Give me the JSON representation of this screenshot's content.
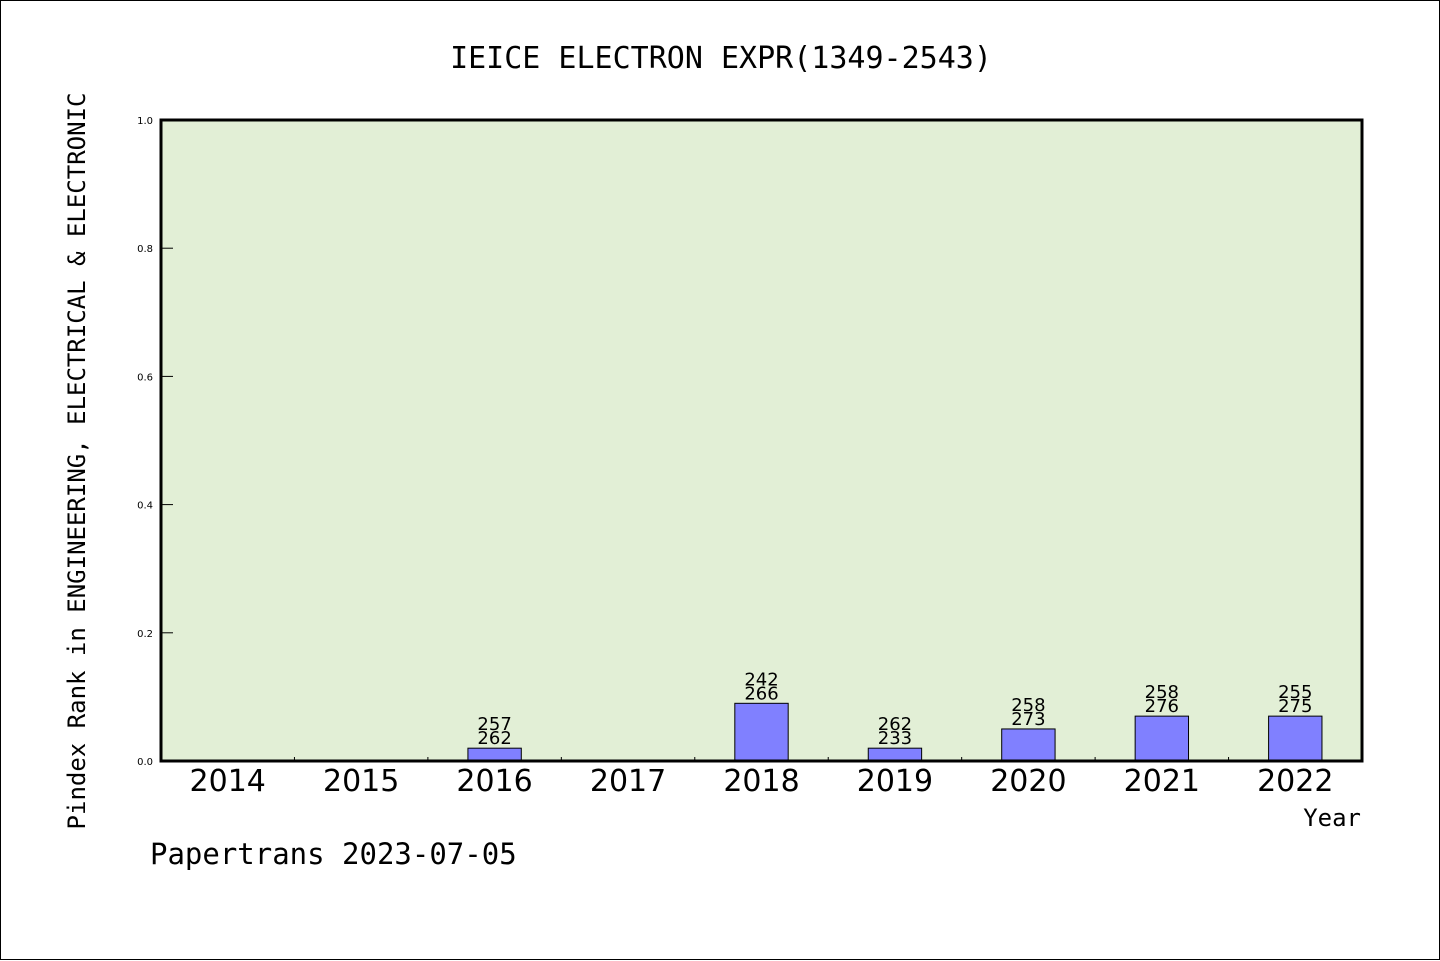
{
  "chart_data": {
    "type": "bar",
    "title": "IEICE ELECTRON EXPR(1349-2543)",
    "ylabel": "Pindex Rank in ENGINEERING, ELECTRICAL & ELECTRONIC",
    "xlabel": "Year",
    "ylim": [
      0,
      1.0
    ],
    "yticks": [
      "0.0",
      "0.2",
      "0.4",
      "0.6",
      "0.8",
      "1.0"
    ],
    "categories": [
      "2014",
      "2015",
      "2016",
      "2017",
      "2018",
      "2019",
      "2020",
      "2021",
      "2022"
    ],
    "values": [
      0,
      0,
      0.02,
      0,
      0.09,
      0.02,
      0.05,
      0.07,
      0.07
    ],
    "bar_labels": [
      {
        "top": "",
        "bottom": ""
      },
      {
        "top": "",
        "bottom": ""
      },
      {
        "top": "257",
        "bottom": "262"
      },
      {
        "top": "",
        "bottom": ""
      },
      {
        "top": "242",
        "bottom": "266"
      },
      {
        "top": "262",
        "bottom": "233"
      },
      {
        "top": "258",
        "bottom": "273"
      },
      {
        "top": "258",
        "bottom": "276"
      },
      {
        "top": "255",
        "bottom": "275"
      }
    ],
    "grid": false,
    "legend": "none",
    "colors": {
      "plot_background": "#e2efd6",
      "bar_fill": "#8080ff",
      "bar_stroke": "#000000",
      "axis": "#000000"
    }
  },
  "footer": {
    "credit": "Papertrans 2023-07-05"
  }
}
